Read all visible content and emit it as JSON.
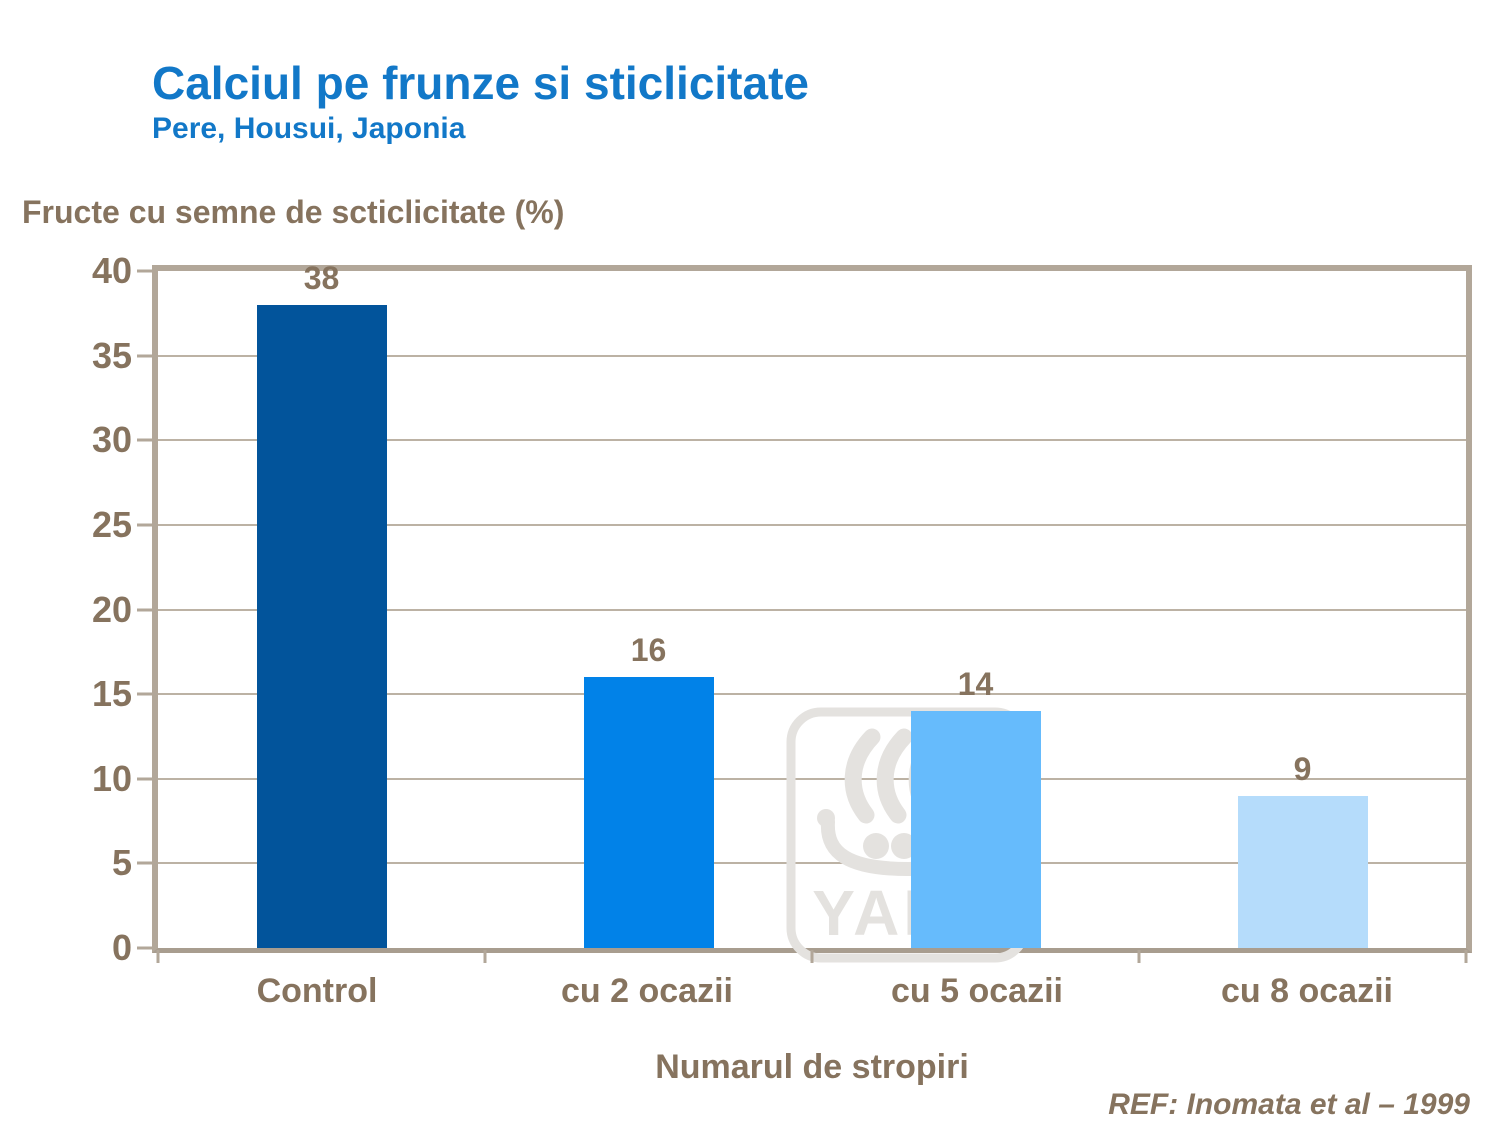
{
  "header": {
    "title": "Calciul pe frunze si sticlicitate",
    "subtitle": "Pere, Housui, Japonia"
  },
  "chart_data": {
    "type": "bar",
    "title": "Calciul pe frunze si sticlicitate",
    "subtitle": "Pere, Housui, Japonia",
    "ylabel": "Fructe cu semne de scticlicitate (%)",
    "xlabel": "Numarul de stropiri",
    "categories": [
      "Control",
      "cu 2 ocazii",
      "cu 5 ocazii",
      "cu 8 ocazii"
    ],
    "values": [
      38,
      16,
      14,
      9
    ],
    "bar_colors": [
      "#02549B",
      "#0182E8",
      "#66BBFC",
      "#B5DCFB"
    ],
    "ylim": [
      0,
      40
    ],
    "yticks": [
      0,
      5,
      10,
      15,
      20,
      25,
      30,
      35,
      40
    ],
    "grid": true,
    "legend": false
  },
  "footer": {
    "reference": "REF: Inomata et al – 1999"
  },
  "watermark": {
    "name": "yara-logo",
    "text": "YARA",
    "color": "#E4E2DF"
  },
  "colors": {
    "title_blue": "#1278C8",
    "text_brown": "#86735E",
    "grid": "#BCB2A4",
    "frame": "#B2A799"
  }
}
